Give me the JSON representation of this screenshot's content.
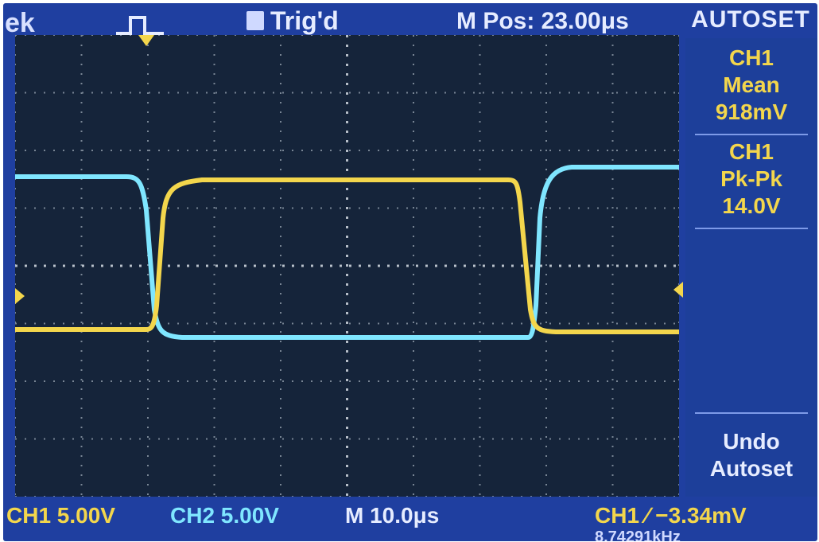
{
  "topbar": {
    "brand": "ek",
    "trigger_state": "Trig'd",
    "m_pos": "M Pos: 23.00μs",
    "autoset_title": "AUTOSET"
  },
  "sidebar": {
    "items": [
      {
        "ch": "CH1",
        "label": "Mean",
        "value": "918mV"
      },
      {
        "ch": "CH1",
        "label": "Pk-Pk",
        "value": "14.0V"
      }
    ],
    "undo_label_1": "Undo",
    "undo_label_2": "Autoset"
  },
  "bottombar": {
    "ch1_scale": "CH1  5.00V",
    "ch2_scale": "CH2  5.00V",
    "timebase": "M 10.0μs",
    "trigger": "CH1  ∕  −3.34mV",
    "frequency": "8.74291kHz"
  },
  "colors": {
    "screen_bg": "#1f3fa0",
    "grid_bg": "#15243a",
    "ch1": "#f3d64c",
    "ch2": "#7fe6ff"
  },
  "icons": {
    "trigger_symbol": "pulse-trigger-icon",
    "marker_left": "ch1-ground-marker",
    "marker_right": "trigger-level-marker",
    "trigger_position": "trigger-position-marker"
  }
}
